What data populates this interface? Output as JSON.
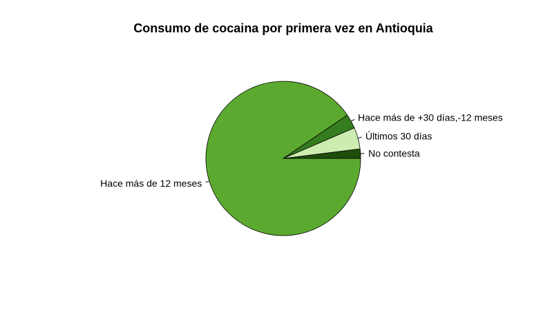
{
  "chart_data": {
    "type": "pie",
    "title": "Consumo de cocaina por primera vez en Antioquia",
    "slices": [
      {
        "label": "No contesta",
        "value": 2.0,
        "color": "#1F4D0A"
      },
      {
        "label": "Últimos 30 días",
        "value": 4.5,
        "color": "#CDEDB0"
      },
      {
        "label": "Hace más de +30 días,-12 meses",
        "value": 3.0,
        "color": "#367D1F"
      },
      {
        "label": "Hace más de 12 meses",
        "value": 90.5,
        "color": "#5BAA2F"
      }
    ],
    "start_angle_deg": 0,
    "direction": "counterclockwise"
  }
}
